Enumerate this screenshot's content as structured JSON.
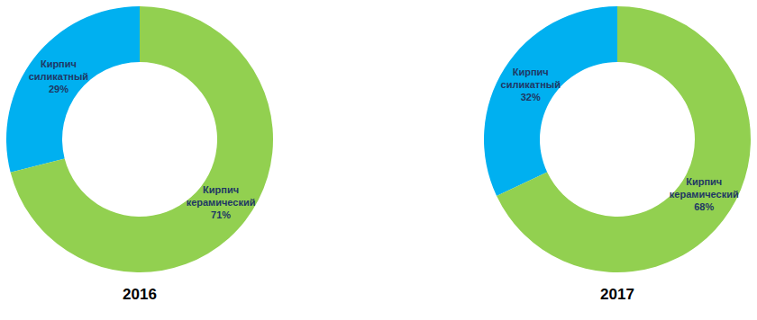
{
  "chart_data": [
    {
      "type": "pie",
      "title": "2016",
      "categories": [
        "Кирпич силикатный",
        "Кирпич керамический"
      ],
      "values": [
        29,
        71
      ],
      "value_labels": [
        "29%",
        "71%"
      ],
      "colors": [
        "#00b0f0",
        "#92d050"
      ],
      "data_labels": true
    },
    {
      "type": "pie",
      "title": "2017",
      "categories": [
        "Кирпич силикатный",
        "Кирпич керамический"
      ],
      "values": [
        32,
        68
      ],
      "value_labels": [
        "32%",
        "68%"
      ],
      "colors": [
        "#00b0f0",
        "#92d050"
      ],
      "data_labels": true
    }
  ]
}
